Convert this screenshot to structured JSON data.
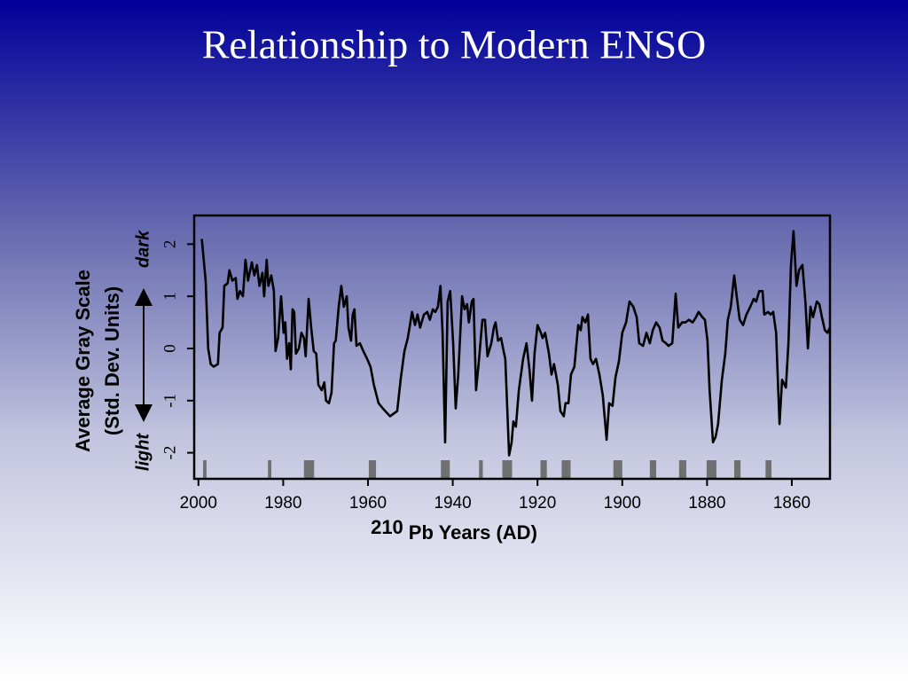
{
  "chart_data": {
    "type": "line",
    "title": "Relationship to Modern ENSO",
    "x_label_superscript": "210",
    "x_label": "Pb Years (AD)",
    "y_label": [
      "Average Gray Scale",
      "(Std. Dev. Units)"
    ],
    "y_top_note": "dark",
    "y_bottom_note": "light",
    "color": "#000000",
    "shade_color": "#707070",
    "xlim": [
      2001,
      1851
    ],
    "ylim": [
      -2.5,
      2.55
    ],
    "xticks": [
      2000,
      1980,
      1960,
      1940,
      1920,
      1900,
      1880,
      1860
    ],
    "yticks": [
      -2,
      -1,
      0,
      1,
      2
    ],
    "x": [
      1999.2,
      1998.3,
      1997.7,
      1997.1,
      1996.4,
      1995.4,
      1995.0,
      1994.3,
      1993.9,
      1993.1,
      1992.7,
      1992.0,
      1991.2,
      1990.8,
      1990.2,
      1989.5,
      1988.9,
      1988.3,
      1987.4,
      1986.8,
      1986.2,
      1985.6,
      1984.9,
      1984.5,
      1983.9,
      1983.5,
      1982.8,
      1982.2,
      1981.8,
      1981.2,
      1980.5,
      1979.9,
      1979.5,
      1979.1,
      1978.6,
      1978.2,
      1977.8,
      1977.4,
      1977.0,
      1976.3,
      1975.7,
      1975.1,
      1974.7,
      1974.0,
      1973.4,
      1972.8,
      1972.2,
      1971.7,
      1970.9,
      1970.3,
      1969.9,
      1969.2,
      1968.6,
      1968.0,
      1967.6,
      1966.9,
      1966.3,
      1965.7,
      1965.0,
      1964.6,
      1964.0,
      1963.6,
      1963.2,
      1962.7,
      1961.9,
      1961.1,
      1960.2,
      1959.4,
      1958.6,
      1957.5,
      1956.5,
      1954.8,
      1953.1,
      1952.3,
      1951.4,
      1950.6,
      1949.6,
      1948.9,
      1948.3,
      1947.7,
      1946.8,
      1946.0,
      1945.4,
      1944.7,
      1944.1,
      1943.5,
      1942.9,
      1942.4,
      1941.8,
      1941.2,
      1940.6,
      1939.9,
      1939.3,
      1938.7,
      1937.8,
      1937.2,
      1936.6,
      1936.2,
      1935.5,
      1935.1,
      1934.5,
      1933.9,
      1933.0,
      1932.4,
      1931.8,
      1930.9,
      1930.3,
      1929.9,
      1929.3,
      1928.6,
      1928.0,
      1927.6,
      1926.7,
      1926.1,
      1925.7,
      1925.1,
      1924.4,
      1923.4,
      1922.6,
      1921.9,
      1921.3,
      1920.7,
      1920.0,
      1919.2,
      1918.8,
      1918.2,
      1917.3,
      1916.7,
      1916.1,
      1915.2,
      1914.6,
      1913.8,
      1913.4,
      1912.7,
      1912.1,
      1911.3,
      1910.4,
      1909.8,
      1909.4,
      1908.7,
      1908.1,
      1907.5,
      1906.9,
      1906.2,
      1905.4,
      1904.6,
      1903.7,
      1903.1,
      1902.3,
      1901.6,
      1900.8,
      1900.0,
      1899.1,
      1898.3,
      1897.4,
      1896.6,
      1896.0,
      1895.1,
      1894.3,
      1893.5,
      1892.8,
      1892.0,
      1891.2,
      1890.5,
      1889.7,
      1889.1,
      1888.2,
      1887.4,
      1886.8,
      1885.9,
      1885.1,
      1884.3,
      1883.4,
      1882.6,
      1882.0,
      1881.1,
      1880.5,
      1879.9,
      1879.4,
      1878.6,
      1878.0,
      1877.4,
      1876.5,
      1875.7,
      1875.1,
      1874.4,
      1873.6,
      1873.0,
      1872.3,
      1871.5,
      1870.7,
      1869.8,
      1869.0,
      1868.4,
      1867.7,
      1866.9,
      1866.5,
      1865.6,
      1865.0,
      1864.4,
      1863.7,
      1863.3,
      1862.9,
      1862.3,
      1861.4,
      1860.8,
      1860.2,
      1859.6,
      1858.9,
      1858.3,
      1857.5,
      1856.8,
      1856.2,
      1855.6,
      1855.0,
      1854.1,
      1853.5,
      1852.9,
      1852.2,
      1851.6,
      1851.0
    ],
    "values": [
      2.1,
      1.3,
      0.0,
      -0.3,
      -0.35,
      -0.3,
      0.3,
      0.4,
      1.2,
      1.25,
      1.5,
      1.3,
      1.35,
      0.95,
      1.1,
      1.0,
      1.7,
      1.3,
      1.65,
      1.4,
      1.6,
      1.2,
      1.45,
      1.0,
      1.7,
      1.2,
      1.4,
      1.1,
      -0.05,
      0.2,
      1.0,
      0.3,
      0.5,
      -0.2,
      0.1,
      -0.4,
      0.75,
      0.7,
      -0.1,
      0.0,
      0.3,
      0.2,
      -0.15,
      0.95,
      0.4,
      -0.05,
      -0.1,
      -0.7,
      -0.8,
      -0.65,
      -1.0,
      -1.05,
      -0.85,
      0.1,
      0.15,
      0.8,
      1.2,
      0.8,
      1.0,
      0.4,
      0.15,
      0.65,
      0.75,
      0.05,
      0.1,
      -0.05,
      -0.2,
      -0.35,
      -0.7,
      -1.05,
      -1.15,
      -1.3,
      -1.2,
      -0.6,
      -0.05,
      0.2,
      0.7,
      0.45,
      0.65,
      0.4,
      0.65,
      0.7,
      0.55,
      0.75,
      0.7,
      0.8,
      1.2,
      0.3,
      -1.8,
      0.9,
      1.1,
      0.1,
      -1.15,
      -0.5,
      1.0,
      0.75,
      0.85,
      0.5,
      0.9,
      0.95,
      -0.8,
      -0.3,
      0.55,
      0.55,
      -0.15,
      0.1,
      0.4,
      0.5,
      0.15,
      0.2,
      -0.05,
      -0.2,
      -2.05,
      -1.8,
      -1.4,
      -1.5,
      -0.8,
      -0.2,
      0.1,
      -0.4,
      -1.0,
      -0.1,
      0.45,
      0.3,
      0.2,
      0.3,
      -0.1,
      -0.5,
      -0.3,
      -0.7,
      -1.2,
      -1.3,
      -1.05,
      -1.05,
      -0.5,
      -0.35,
      0.45,
      0.35,
      0.6,
      0.5,
      0.65,
      -0.2,
      -0.3,
      -0.2,
      -0.5,
      -0.9,
      -1.75,
      -1.05,
      -1.1,
      -0.55,
      -0.25,
      0.3,
      0.5,
      0.9,
      0.8,
      0.6,
      0.1,
      0.05,
      0.3,
      0.1,
      0.35,
      0.5,
      0.4,
      0.15,
      0.1,
      0.05,
      0.1,
      1.05,
      0.4,
      0.5,
      0.5,
      0.55,
      0.5,
      0.6,
      0.7,
      0.6,
      0.55,
      0.15,
      -0.8,
      -1.8,
      -1.7,
      -1.45,
      -0.6,
      -0.1,
      0.55,
      0.8,
      1.4,
      1.0,
      0.55,
      0.45,
      0.65,
      0.8,
      0.95,
      0.9,
      1.1,
      1.1,
      0.65,
      0.7,
      0.65,
      0.7,
      0.3,
      -0.6,
      -1.45,
      -0.6,
      -0.75,
      0.1,
      1.6,
      2.25,
      1.2,
      1.5,
      1.6,
      0.9,
      0.0,
      0.8,
      0.6,
      0.9,
      0.85,
      0.6,
      0.35,
      0.3,
      0.4
    ],
    "shaded_periods": [
      {
        "start": 1998.9,
        "end": 1998.1
      },
      {
        "start": 1983.6,
        "end": 1982.8
      },
      {
        "start": 1975.1,
        "end": 1972.7
      },
      {
        "start": 1959.8,
        "end": 1958.1
      },
      {
        "start": 1942.8,
        "end": 1940.7
      },
      {
        "start": 1933.8,
        "end": 1932.9
      },
      {
        "start": 1928.3,
        "end": 1926.0
      },
      {
        "start": 1919.3,
        "end": 1917.8
      },
      {
        "start": 1914.3,
        "end": 1912.2
      },
      {
        "start": 1902.1,
        "end": 1900.0
      },
      {
        "start": 1893.5,
        "end": 1892.0
      },
      {
        "start": 1886.6,
        "end": 1884.9
      },
      {
        "start": 1880.1,
        "end": 1877.8
      },
      {
        "start": 1873.6,
        "end": 1872.1
      },
      {
        "start": 1866.2,
        "end": 1864.8
      }
    ]
  }
}
